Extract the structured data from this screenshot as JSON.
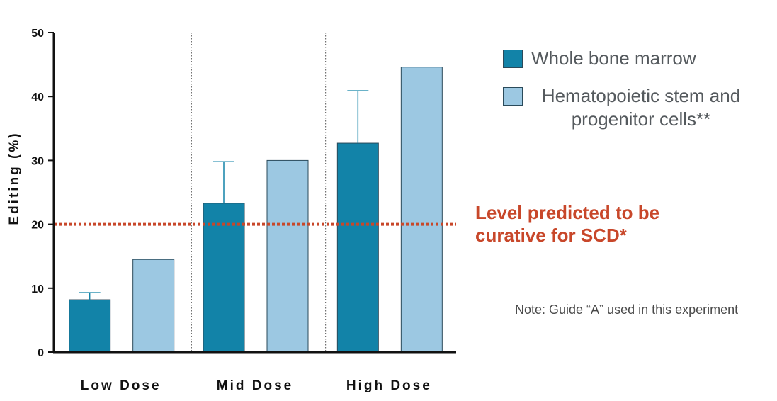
{
  "chart_data": {
    "type": "bar",
    "categories": [
      "Low Dose",
      "Mid Dose",
      "High Dose"
    ],
    "ylabel": "Editing (%)",
    "ylim": [
      0,
      50
    ],
    "yticks": [
      "0",
      "10",
      "20",
      "30",
      "40",
      "50"
    ],
    "series": [
      {
        "name": "Whole bone marrow",
        "color": "#1283a8",
        "values": [
          8.2,
          23.3,
          32.7
        ],
        "error_upper": [
          9.3,
          29.8,
          40.9
        ]
      },
      {
        "name": "Hematopoietic stem and progenitor cells**",
        "color": "#9cc8e2",
        "values": [
          14.5,
          30.0,
          44.6
        ]
      }
    ],
    "threshold": {
      "value": 20,
      "color": "#c8472a",
      "label_line1": "Level predicted to be",
      "label_line2": "curative for SCD*"
    },
    "note": "Note: Guide “A” used in this experiment",
    "grid": false,
    "legend_position": "top-right"
  }
}
